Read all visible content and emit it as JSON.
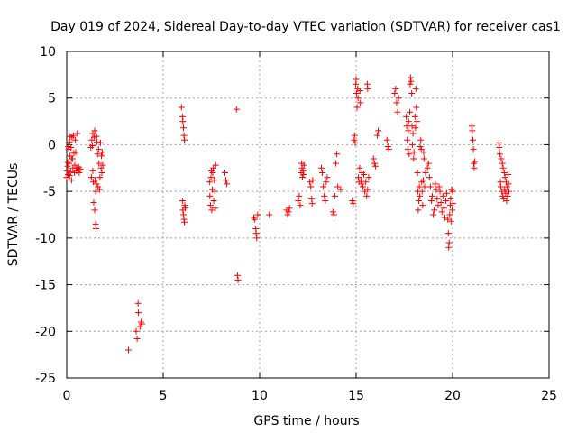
{
  "chart_data": {
    "type": "scatter",
    "title": "Day 019 of 2024, Sidereal Day-to-day VTEC variation (SDTVAR) for receiver cas1",
    "xlabel": "GPS time / hours",
    "ylabel": "SDTVAR / TECUs",
    "xlim": [
      0,
      25
    ],
    "ylim": [
      -25,
      10
    ],
    "xticks": [
      "0",
      "5",
      "10",
      "15",
      "20",
      "25"
    ],
    "yticks": [
      "10",
      "5",
      "0",
      "-5",
      "-10",
      "-15",
      "-20",
      "-25"
    ],
    "grid": true,
    "marker": "+",
    "marker_color": "#ff0000",
    "series": [
      {
        "name": "cas1",
        "points": [
          [
            0.0,
            -3.5
          ],
          [
            0.02,
            -2.8
          ],
          [
            0.05,
            -1.9
          ],
          [
            0.07,
            -3.2
          ],
          [
            0.1,
            -0.5
          ],
          [
            0.12,
            -2.0
          ],
          [
            0.15,
            0.3
          ],
          [
            0.17,
            -1.2
          ],
          [
            0.2,
            -2.9
          ],
          [
            0.22,
            -0.3
          ],
          [
            0.25,
            -3.8
          ],
          [
            0.27,
            0.8
          ],
          [
            0.3,
            -1.5
          ],
          [
            0.32,
            -2.5
          ],
          [
            0.35,
            1.0
          ],
          [
            0.37,
            -0.9
          ],
          [
            0.4,
            -3.0
          ],
          [
            0.42,
            -2.2
          ],
          [
            0.45,
            0.5
          ],
          [
            0.47,
            -0.8
          ],
          [
            0.5,
            -2.8
          ],
          [
            0.52,
            -2.5
          ],
          [
            0.55,
            1.2
          ],
          [
            0.6,
            -2.7
          ],
          [
            0.62,
            -2.4
          ],
          [
            0.65,
            -3.0
          ],
          [
            0.7,
            -2.6
          ],
          [
            0.05,
            -2.3
          ],
          [
            0.15,
            -3.3
          ],
          [
            0.25,
            -1.5
          ],
          [
            0.08,
            -0.2
          ],
          [
            0.18,
            0.9
          ],
          [
            1.25,
            -0.3
          ],
          [
            1.28,
            -3.5
          ],
          [
            1.3,
            0.5
          ],
          [
            1.33,
            -0.1
          ],
          [
            1.35,
            1.2
          ],
          [
            1.38,
            -4.0
          ],
          [
            1.4,
            -6.2
          ],
          [
            1.42,
            0.8
          ],
          [
            1.45,
            -7.0
          ],
          [
            1.47,
            -3.8
          ],
          [
            1.5,
            -8.5
          ],
          [
            1.52,
            -9.0
          ],
          [
            1.55,
            -4.2
          ],
          [
            1.57,
            0.3
          ],
          [
            1.6,
            -1.0
          ],
          [
            1.62,
            -4.5
          ],
          [
            1.65,
            -0.5
          ],
          [
            1.67,
            -2.0
          ],
          [
            1.7,
            -4.8
          ],
          [
            1.72,
            -3.5
          ],
          [
            1.75,
            0.2
          ],
          [
            1.78,
            -2.5
          ],
          [
            1.8,
            -1.2
          ],
          [
            1.82,
            -3.0
          ],
          [
            1.85,
            -0.8
          ],
          [
            1.87,
            -2.2
          ],
          [
            1.45,
            1.5
          ],
          [
            1.55,
            0.9
          ],
          [
            1.35,
            -2.8
          ],
          [
            1.5,
            -5.0
          ],
          [
            3.2,
            -22.0
          ],
          [
            3.6,
            -20.0
          ],
          [
            3.65,
            -20.8
          ],
          [
            3.7,
            -17.0
          ],
          [
            3.72,
            -18.0
          ],
          [
            3.8,
            -19.5
          ],
          [
            3.85,
            -19.0
          ],
          [
            3.9,
            -19.2
          ],
          [
            5.95,
            4.0
          ],
          [
            6.0,
            3.0
          ],
          [
            6.02,
            2.5
          ],
          [
            6.05,
            1.8
          ],
          [
            6.08,
            1.0
          ],
          [
            6.1,
            0.5
          ],
          [
            6.0,
            -6.0
          ],
          [
            6.02,
            -7.0
          ],
          [
            6.05,
            -7.5
          ],
          [
            6.08,
            -8.0
          ],
          [
            6.1,
            -8.3
          ],
          [
            6.12,
            -6.5
          ],
          [
            6.15,
            -6.8
          ],
          [
            7.4,
            -4.0
          ],
          [
            7.42,
            -5.5
          ],
          [
            7.45,
            -6.5
          ],
          [
            7.48,
            -3.5
          ],
          [
            7.5,
            -2.8
          ],
          [
            7.52,
            -7.0
          ],
          [
            7.55,
            -4.8
          ],
          [
            7.57,
            -3.0
          ],
          [
            7.6,
            -2.5
          ],
          [
            7.62,
            -6.0
          ],
          [
            7.65,
            -3.8
          ],
          [
            7.68,
            -5.0
          ],
          [
            7.7,
            -6.8
          ],
          [
            7.72,
            -2.2
          ],
          [
            8.2,
            -3.0
          ],
          [
            8.25,
            -3.8
          ],
          [
            8.3,
            -4.2
          ],
          [
            8.8,
            3.8
          ],
          [
            8.85,
            -14.0
          ],
          [
            8.88,
            -14.5
          ],
          [
            9.7,
            -7.8
          ],
          [
            9.75,
            -8.0
          ],
          [
            9.8,
            -9.0
          ],
          [
            9.82,
            -9.5
          ],
          [
            9.85,
            -10.0
          ],
          [
            9.9,
            -7.5
          ],
          [
            10.5,
            -7.5
          ],
          [
            11.4,
            -7.0
          ],
          [
            11.45,
            -7.5
          ],
          [
            11.5,
            -7.2
          ],
          [
            11.55,
            -6.8
          ],
          [
            12.0,
            -6.0
          ],
          [
            12.05,
            -5.5
          ],
          [
            12.1,
            -6.5
          ],
          [
            12.15,
            -3.0
          ],
          [
            12.18,
            -2.0
          ],
          [
            12.2,
            -2.5
          ],
          [
            12.22,
            -3.5
          ],
          [
            12.25,
            -2.8
          ],
          [
            12.28,
            -3.2
          ],
          [
            12.3,
            -2.2
          ],
          [
            12.6,
            -4.0
          ],
          [
            12.65,
            -4.5
          ],
          [
            12.7,
            -5.8
          ],
          [
            12.72,
            -6.3
          ],
          [
            12.75,
            -3.8
          ],
          [
            13.2,
            -2.5
          ],
          [
            13.25,
            -3.0
          ],
          [
            13.3,
            -4.5
          ],
          [
            13.35,
            -5.5
          ],
          [
            13.4,
            -6.0
          ],
          [
            13.45,
            -4.0
          ],
          [
            13.5,
            -3.5
          ],
          [
            13.8,
            -7.2
          ],
          [
            13.85,
            -7.5
          ],
          [
            13.9,
            -5.5
          ],
          [
            13.95,
            -2.0
          ],
          [
            14.0,
            -1.0
          ],
          [
            14.05,
            -4.5
          ],
          [
            14.2,
            -4.8
          ],
          [
            14.8,
            -6.0
          ],
          [
            14.85,
            -6.3
          ],
          [
            14.9,
            0.5
          ],
          [
            14.92,
            1.0
          ],
          [
            14.95,
            0.2
          ],
          [
            14.98,
            6.5
          ],
          [
            15.0,
            7.0
          ],
          [
            15.02,
            5.5
          ],
          [
            15.05,
            4.0
          ],
          [
            15.08,
            6.0
          ],
          [
            15.1,
            5.0
          ],
          [
            15.12,
            -3.5
          ],
          [
            15.15,
            -4.0
          ],
          [
            15.18,
            -2.5
          ],
          [
            15.2,
            5.8
          ],
          [
            15.22,
            4.5
          ],
          [
            15.25,
            -3.8
          ],
          [
            15.28,
            -4.2
          ],
          [
            15.3,
            -3.0
          ],
          [
            15.35,
            -4.5
          ],
          [
            15.4,
            -3.2
          ],
          [
            15.45,
            -5.0
          ],
          [
            15.5,
            -4.0
          ],
          [
            15.55,
            -5.5
          ],
          [
            15.6,
            -4.8
          ],
          [
            15.65,
            -3.5
          ],
          [
            15.58,
            6.5
          ],
          [
            15.6,
            6.0
          ],
          [
            15.9,
            -1.5
          ],
          [
            15.95,
            -2.0
          ],
          [
            16.0,
            -2.3
          ],
          [
            16.1,
            1.0
          ],
          [
            16.15,
            1.5
          ],
          [
            16.6,
            0.5
          ],
          [
            16.65,
            -0.2
          ],
          [
            16.7,
            -0.5
          ],
          [
            17.0,
            5.5
          ],
          [
            17.05,
            6.0
          ],
          [
            17.1,
            4.5
          ],
          [
            17.15,
            3.5
          ],
          [
            17.2,
            5.0
          ],
          [
            17.6,
            3.0
          ],
          [
            17.62,
            2.0
          ],
          [
            17.65,
            0.5
          ],
          [
            17.68,
            -0.5
          ],
          [
            17.7,
            1.5
          ],
          [
            17.72,
            2.5
          ],
          [
            17.75,
            -1.0
          ],
          [
            17.78,
            3.5
          ],
          [
            17.8,
            6.5
          ],
          [
            17.82,
            7.2
          ],
          [
            17.85,
            6.8
          ],
          [
            17.88,
            5.5
          ],
          [
            17.9,
            2.0
          ],
          [
            17.92,
            0.0
          ],
          [
            17.95,
            1.2
          ],
          [
            17.98,
            -1.5
          ],
          [
            18.0,
            -0.8
          ],
          [
            18.05,
            3.0
          ],
          [
            18.08,
            1.8
          ],
          [
            18.1,
            6.0
          ],
          [
            18.12,
            4.0
          ],
          [
            18.15,
            2.5
          ],
          [
            18.18,
            -3.0
          ],
          [
            18.2,
            -5.0
          ],
          [
            18.22,
            -7.0
          ],
          [
            18.25,
            -6.0
          ],
          [
            18.28,
            -4.5
          ],
          [
            18.3,
            -5.5
          ],
          [
            18.32,
            -0.2
          ],
          [
            18.35,
            0.5
          ],
          [
            18.38,
            -0.5
          ],
          [
            18.4,
            -4.0
          ],
          [
            18.42,
            -5.0
          ],
          [
            18.45,
            -6.5
          ],
          [
            18.48,
            -3.8
          ],
          [
            18.5,
            -0.8
          ],
          [
            18.52,
            -1.5
          ],
          [
            18.55,
            -4.5
          ],
          [
            18.6,
            -3.0
          ],
          [
            18.7,
            -2.5
          ],
          [
            18.75,
            -2.0
          ],
          [
            18.8,
            -3.5
          ],
          [
            18.85,
            -4.5
          ],
          [
            18.9,
            -6.0
          ],
          [
            18.95,
            -5.5
          ],
          [
            19.0,
            -7.5
          ],
          [
            19.05,
            -7.0
          ],
          [
            19.1,
            -4.2
          ],
          [
            19.15,
            -4.8
          ],
          [
            19.2,
            -5.8
          ],
          [
            19.25,
            -6.5
          ],
          [
            19.3,
            -4.5
          ],
          [
            19.35,
            -5.0
          ],
          [
            19.4,
            -6.2
          ],
          [
            19.45,
            -7.2
          ],
          [
            19.5,
            -5.5
          ],
          [
            19.55,
            -6.8
          ],
          [
            19.6,
            -7.8
          ],
          [
            19.65,
            -6.0
          ],
          [
            19.7,
            -5.2
          ],
          [
            19.75,
            -8.0
          ],
          [
            19.78,
            -9.5
          ],
          [
            19.8,
            -11.0
          ],
          [
            19.82,
            -10.5
          ],
          [
            19.85,
            -7.5
          ],
          [
            19.88,
            -6.5
          ],
          [
            19.9,
            -5.8
          ],
          [
            19.92,
            -8.2
          ],
          [
            19.95,
            -4.8
          ],
          [
            19.98,
            -7.0
          ],
          [
            20.0,
            -5.0
          ],
          [
            20.02,
            -6.3
          ],
          [
            21.0,
            2.0
          ],
          [
            21.02,
            1.5
          ],
          [
            21.05,
            0.5
          ],
          [
            21.08,
            -0.5
          ],
          [
            21.1,
            -2.0
          ],
          [
            21.12,
            -2.5
          ],
          [
            21.15,
            -1.8
          ],
          [
            22.4,
            0.2
          ],
          [
            22.42,
            -0.3
          ],
          [
            22.45,
            -1.0
          ],
          [
            22.48,
            -4.0
          ],
          [
            22.5,
            -4.5
          ],
          [
            22.52,
            -1.5
          ],
          [
            22.55,
            -5.0
          ],
          [
            22.58,
            -2.0
          ],
          [
            22.6,
            -5.5
          ],
          [
            22.62,
            -2.5
          ],
          [
            22.65,
            -5.8
          ],
          [
            22.68,
            -3.0
          ],
          [
            22.7,
            -4.8
          ],
          [
            22.72,
            -3.5
          ],
          [
            22.75,
            -5.2
          ],
          [
            22.78,
            -4.0
          ],
          [
            22.8,
            -6.0
          ],
          [
            22.82,
            -4.5
          ],
          [
            22.85,
            -5.5
          ],
          [
            22.88,
            -3.2
          ],
          [
            22.9,
            -4.2
          ],
          [
            22.92,
            -5.0
          ]
        ]
      }
    ]
  }
}
